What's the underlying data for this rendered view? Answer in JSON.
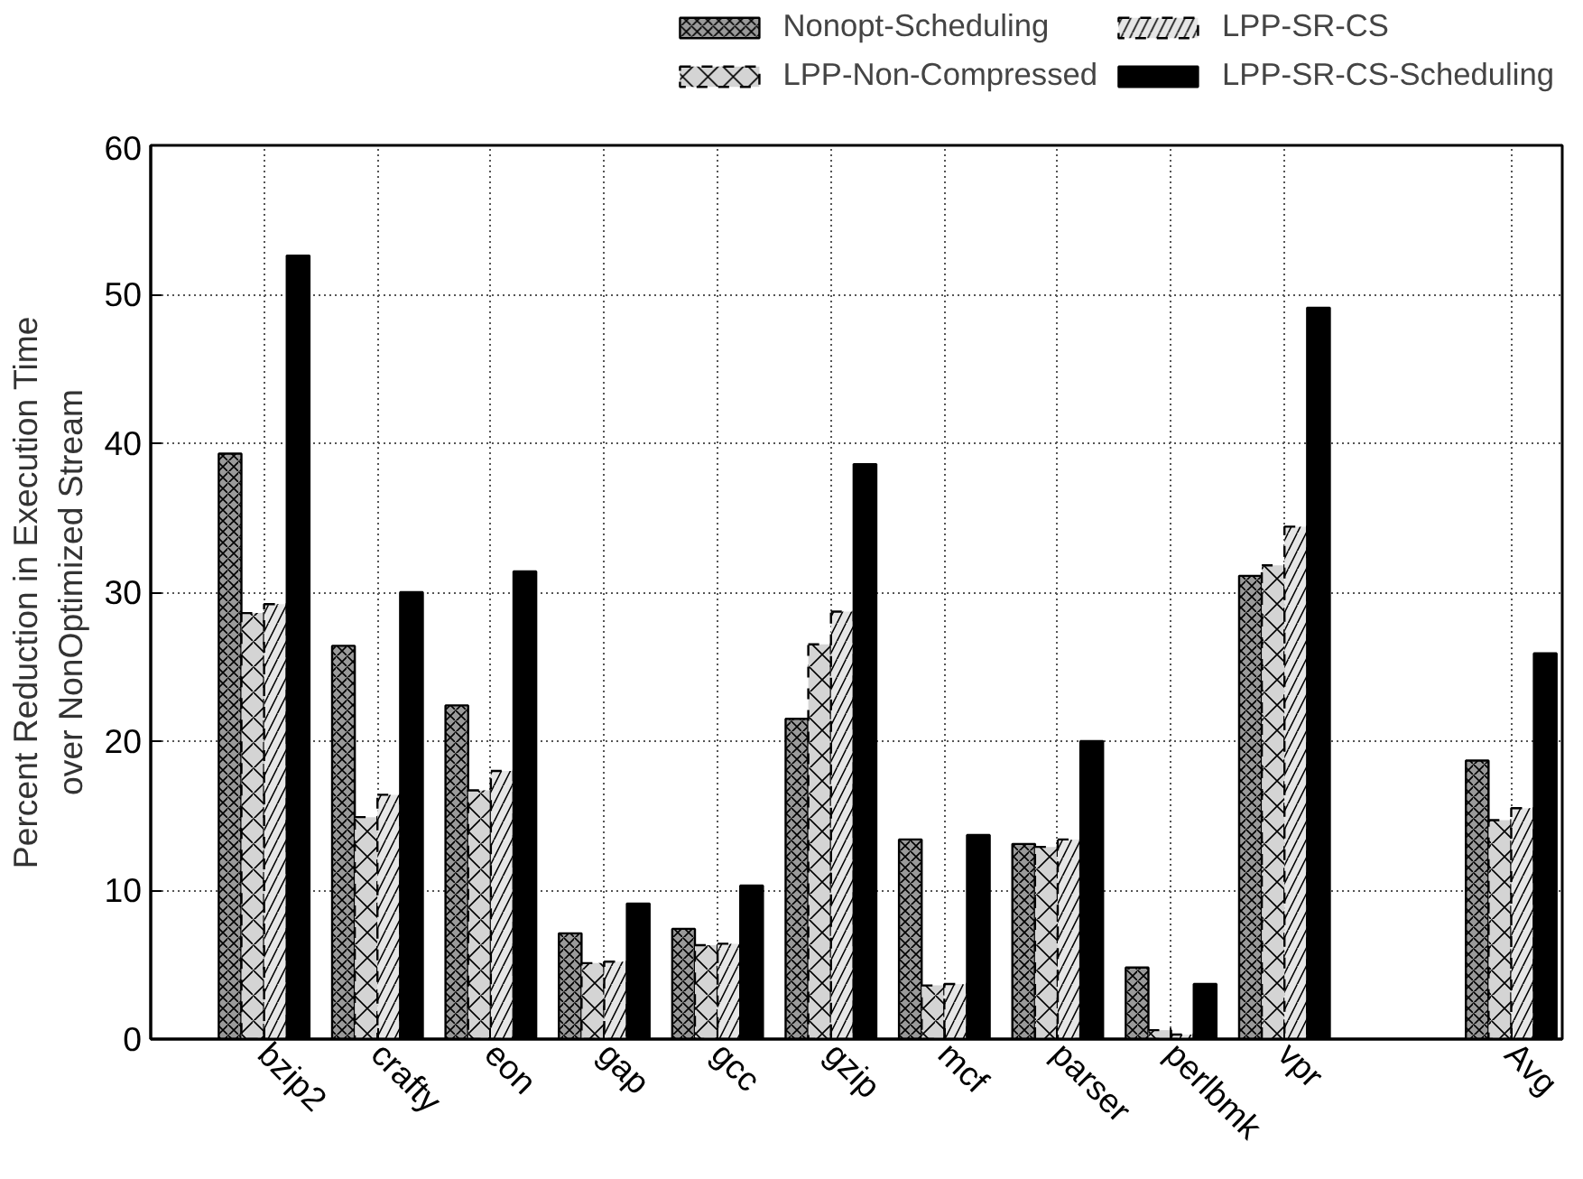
{
  "chart_data": {
    "type": "bar",
    "ylabel": "Percent Reduction in Execution Time\nover NonOptimized Stream",
    "categories": [
      "bzip2",
      "crafty",
      "eon",
      "gap",
      "gcc",
      "gzip",
      "mcf",
      "parser",
      "perlbmk",
      "vpr",
      null,
      "Avg"
    ],
    "series": [
      {
        "name": "Nonopt-Scheduling",
        "color": "#9a9a9a",
        "values": [
          39.3,
          26.4,
          22.4,
          7.1,
          7.4,
          21.5,
          13.4,
          13.1,
          4.8,
          31.1,
          null,
          18.7
        ]
      },
      {
        "name": "LPP-Non-Compressed",
        "color": "#d4d4d4",
        "values": [
          28.6,
          14.9,
          16.7,
          5.1,
          6.3,
          26.5,
          3.6,
          12.9,
          0.6,
          31.8,
          null,
          14.7
        ]
      },
      {
        "name": "LPP-SR-CS",
        "color": "#e6e6e6",
        "values": [
          29.2,
          16.4,
          18.0,
          5.2,
          6.4,
          28.7,
          3.7,
          13.4,
          0.3,
          34.4,
          null,
          15.5
        ]
      },
      {
        "name": "LPP-SR-CS-Scheduling",
        "color": "#000000",
        "values": [
          52.6,
          30.0,
          31.4,
          9.1,
          10.3,
          38.6,
          13.7,
          20.0,
          3.7,
          49.1,
          null,
          25.9
        ]
      }
    ],
    "ylim": [
      0,
      60
    ],
    "yticks": [
      0,
      10,
      20,
      30,
      40,
      50,
      60
    ],
    "grid": true,
    "legend": "top"
  }
}
